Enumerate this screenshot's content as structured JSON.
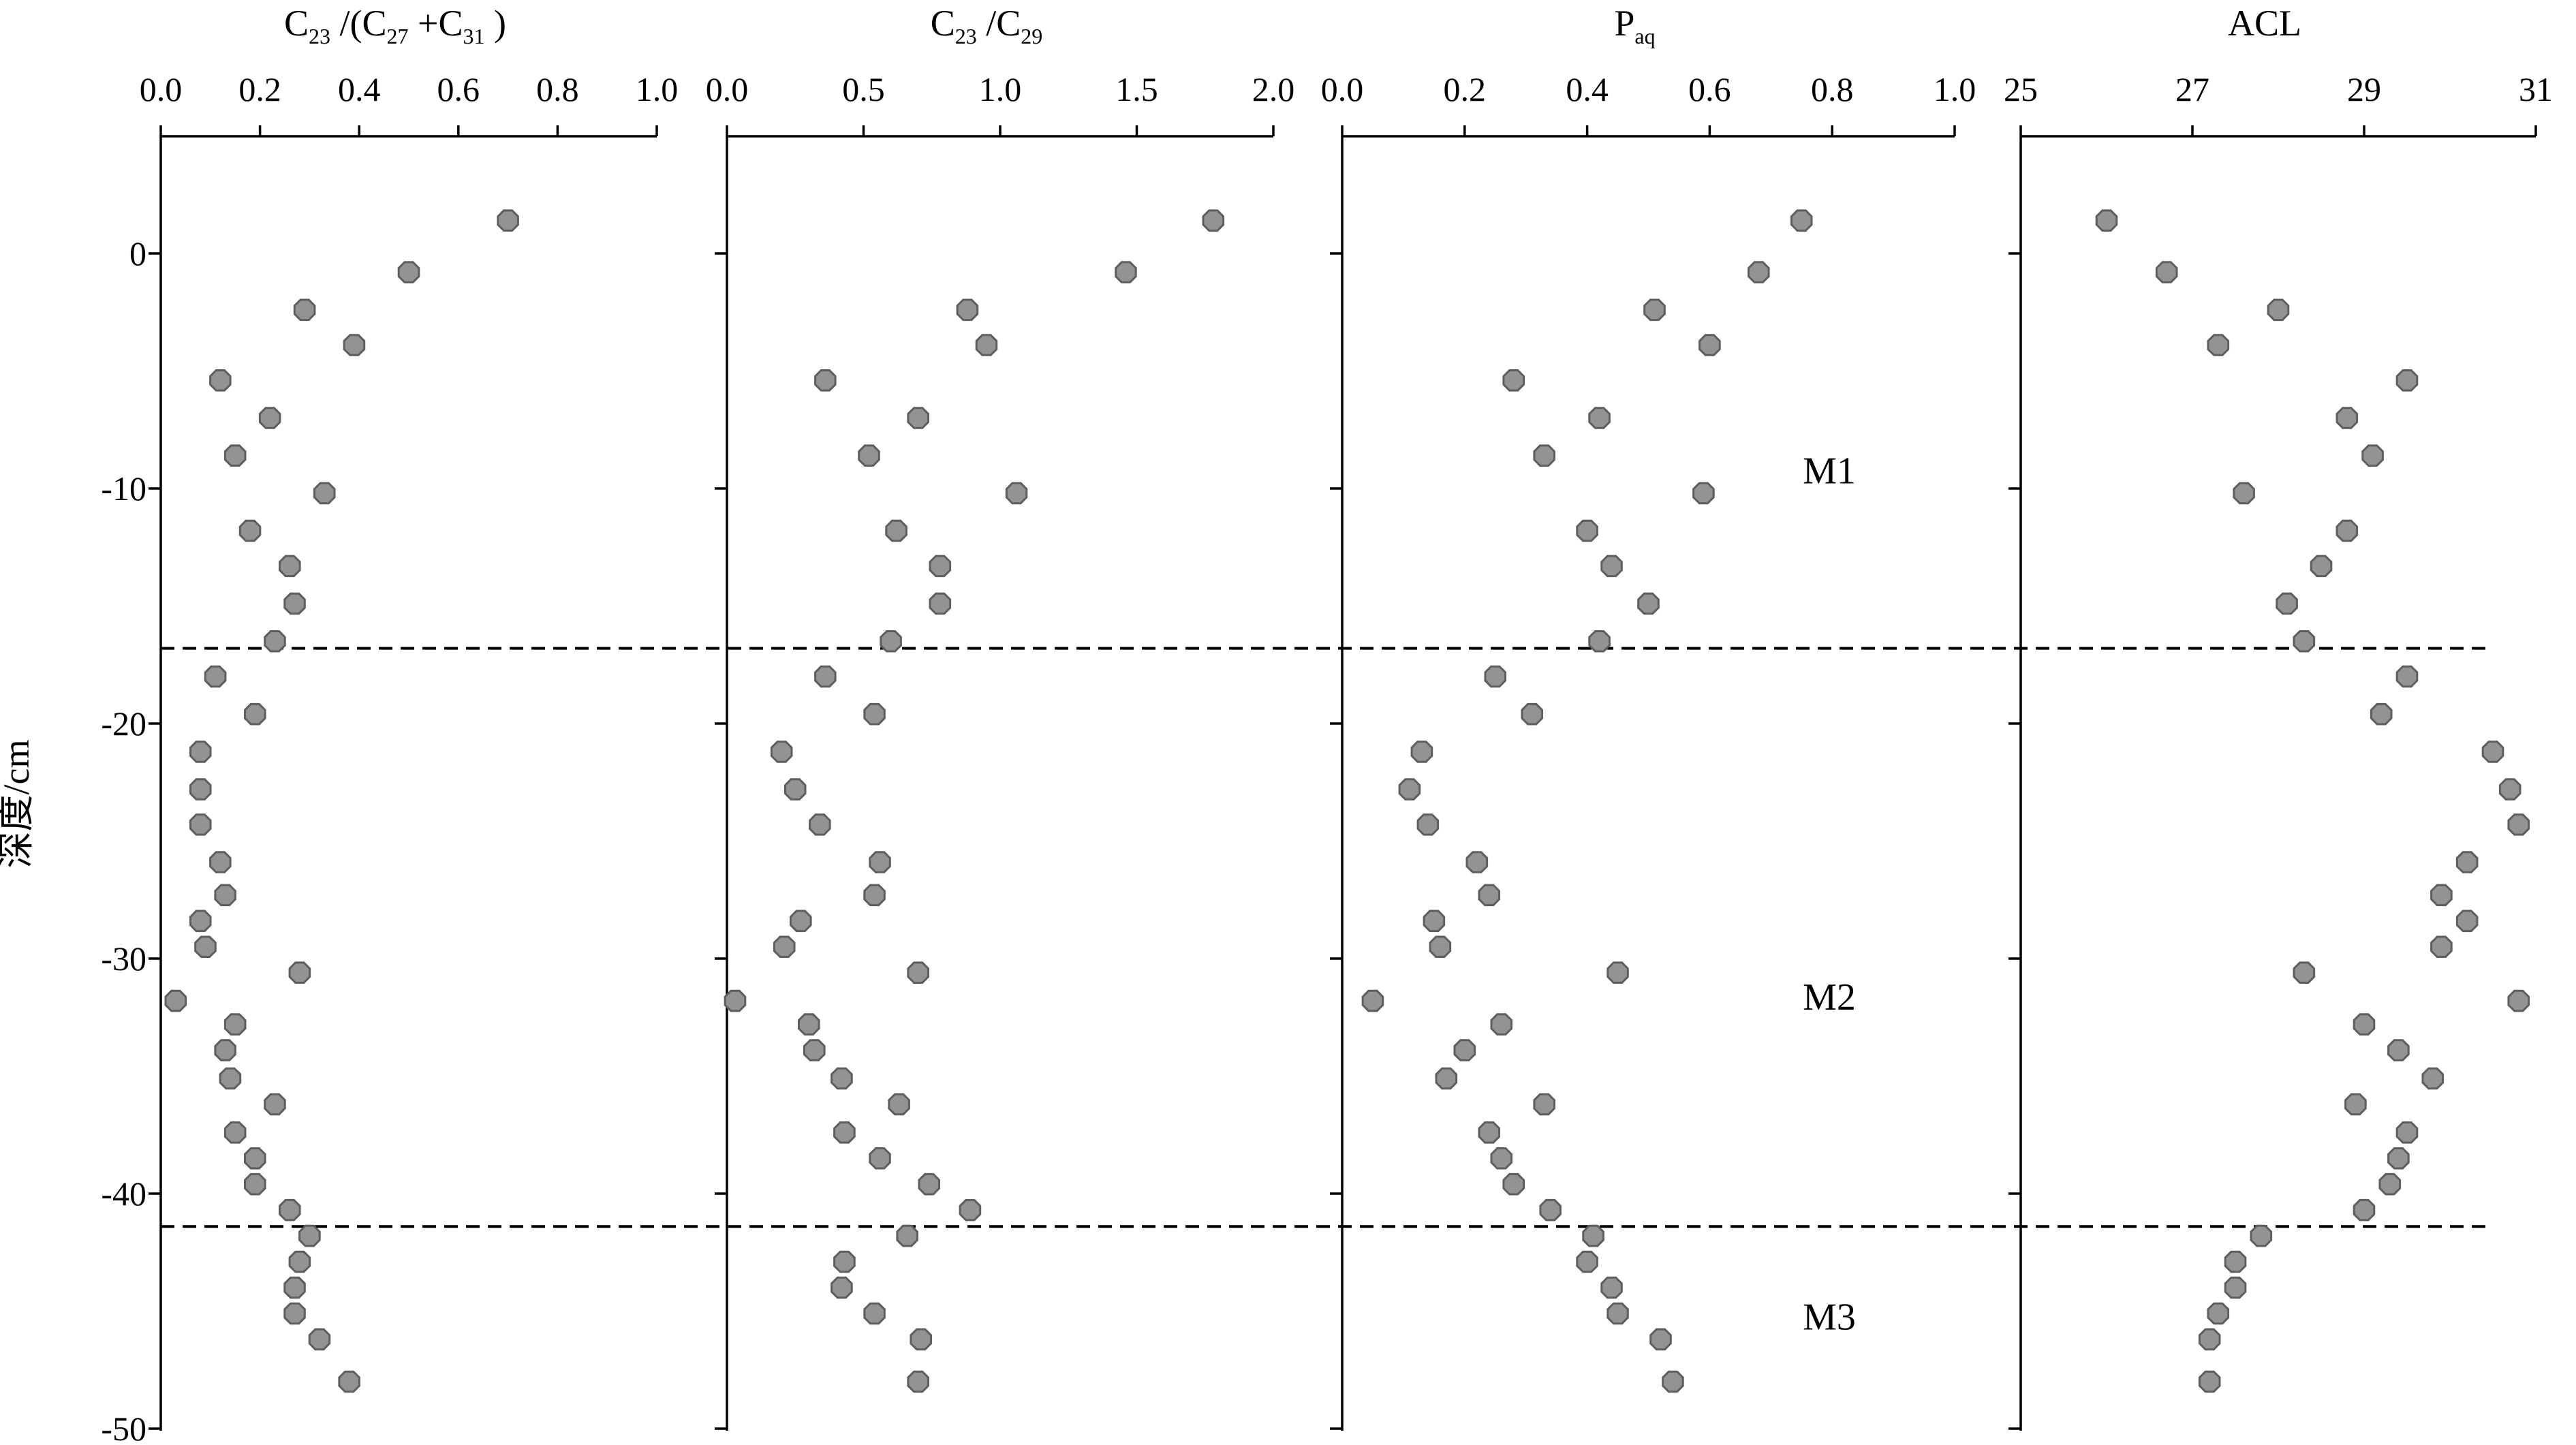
{
  "chart_data": {
    "type": "scatter",
    "ylabel": "深度/cm",
    "ylim": [
      5,
      -50
    ],
    "yticks": [
      0,
      -10,
      -20,
      -30,
      -40,
      -50
    ],
    "depth": [
      1.4,
      -0.8,
      -2.4,
      -3.9,
      -5.4,
      -7.0,
      -8.6,
      -10.2,
      -11.8,
      -13.3,
      -14.9,
      -16.5,
      -18.0,
      -19.6,
      -21.2,
      -22.8,
      -24.3,
      -25.9,
      -27.3,
      -28.4,
      -29.5,
      -30.6,
      -31.8,
      -32.8,
      -33.9,
      -35.1,
      -36.2,
      -37.4,
      -38.5,
      -39.6,
      -40.7,
      -41.8,
      -42.9,
      -44.0,
      -45.1,
      -46.2,
      -48.0
    ],
    "panels": [
      {
        "title": "C23 /(C27 +C31 )",
        "title_runs": [
          {
            "text": "C"
          },
          {
            "text": "23",
            "sub": true
          },
          {
            "text": "/(C"
          },
          {
            "text": "27",
            "sub": true
          },
          {
            "text": "+C"
          },
          {
            "text": "31",
            "sub": true
          },
          {
            "text": ")"
          }
        ],
        "xlim": [
          0,
          1
        ],
        "xticks": [
          "0.0",
          "0.2",
          "0.4",
          "0.6",
          "0.8",
          "1.0"
        ],
        "values": [
          0.7,
          0.5,
          0.29,
          0.39,
          0.12,
          0.22,
          0.15,
          0.33,
          0.18,
          0.26,
          0.27,
          0.23,
          0.11,
          0.19,
          0.08,
          0.08,
          0.08,
          0.12,
          0.13,
          0.08,
          0.09,
          0.28,
          0.03,
          0.15,
          0.13,
          0.14,
          0.23,
          0.15,
          0.19,
          0.19,
          0.26,
          0.3,
          0.28,
          0.27,
          0.27,
          0.32,
          0.38
        ]
      },
      {
        "title": "C23/C29",
        "title_runs": [
          {
            "text": "C"
          },
          {
            "text": "23",
            "sub": true
          },
          {
            "text": "/C"
          },
          {
            "text": "29",
            "sub": true
          }
        ],
        "xlim": [
          0,
          2
        ],
        "xticks": [
          "0.0",
          "0.5",
          "1.0",
          "1.5",
          "2.0"
        ],
        "values": [
          1.78,
          1.46,
          0.88,
          0.95,
          0.36,
          0.7,
          0.52,
          1.06,
          0.62,
          0.78,
          0.78,
          0.6,
          0.36,
          0.54,
          0.2,
          0.25,
          0.34,
          0.56,
          0.54,
          0.27,
          0.21,
          0.7,
          0.03,
          0.3,
          0.32,
          0.42,
          0.63,
          0.43,
          0.56,
          0.74,
          0.89,
          0.66,
          0.43,
          0.42,
          0.54,
          0.71,
          0.7
        ]
      },
      {
        "title": "Paq",
        "title_runs": [
          {
            "text": "P"
          },
          {
            "text": "aq",
            "sub": true
          }
        ],
        "xlim": [
          0,
          1
        ],
        "xticks": [
          "0.0",
          "0.2",
          "0.4",
          "0.6",
          "0.8",
          "1.0"
        ],
        "values": [
          0.75,
          0.68,
          0.51,
          0.6,
          0.28,
          0.42,
          0.33,
          0.59,
          0.4,
          0.44,
          0.5,
          0.42,
          0.25,
          0.31,
          0.13,
          0.11,
          0.14,
          0.22,
          0.24,
          0.15,
          0.16,
          0.45,
          0.05,
          0.26,
          0.2,
          0.17,
          0.33,
          0.24,
          0.26,
          0.28,
          0.34,
          0.41,
          0.4,
          0.44,
          0.45,
          0.52,
          0.54
        ]
      },
      {
        "title": "ACL",
        "title_runs": [
          {
            "text": "ACL"
          }
        ],
        "xlim": [
          25,
          31
        ],
        "xticks": [
          "25",
          "27",
          "29",
          "31"
        ],
        "values": [
          26.0,
          26.7,
          28.0,
          27.3,
          29.5,
          28.8,
          29.1,
          27.6,
          28.8,
          28.5,
          28.1,
          28.3,
          29.5,
          29.2,
          30.5,
          30.7,
          30.8,
          30.2,
          29.9,
          30.2,
          29.9,
          28.3,
          30.8,
          29.0,
          29.4,
          29.8,
          28.9,
          29.5,
          29.4,
          29.3,
          29.0,
          27.8,
          27.5,
          27.5,
          27.3,
          27.2,
          27.2
        ]
      }
    ],
    "zones": [
      {
        "label": "M1",
        "depth": -9.2
      },
      {
        "label": "M2",
        "depth": -31.6
      },
      {
        "label": "M3",
        "depth": -45.2
      }
    ],
    "boundaries": [
      -16.8,
      -41.4
    ]
  }
}
